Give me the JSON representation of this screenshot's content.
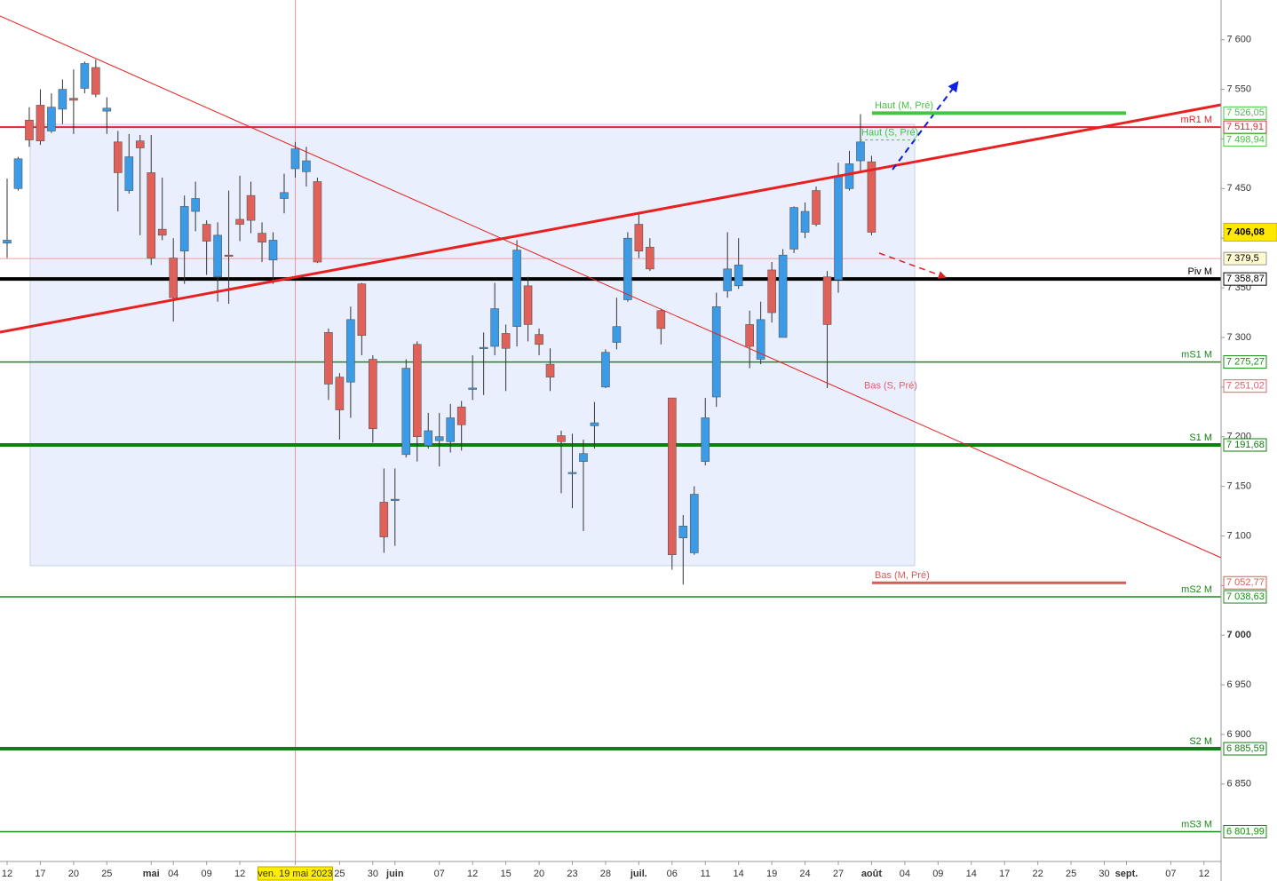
{
  "chart_data": {
    "type": "candlestick",
    "up_color": "#3c9be6",
    "down_color": "#e0605a",
    "categories": [
      "12",
      null,
      null,
      "17",
      null,
      null,
      "20",
      null,
      null,
      "25",
      null,
      null,
      null,
      "mai",
      null,
      "04",
      null,
      null,
      "09",
      null,
      null,
      "12",
      null,
      null,
      null,
      null,
      "ven. 19 mai 2023",
      null,
      null,
      null,
      "25",
      null,
      null,
      "30",
      null,
      "juin",
      null,
      null,
      null,
      "07",
      null,
      null,
      "12",
      null,
      null,
      "15",
      null,
      null,
      "20",
      null,
      null,
      "23",
      null,
      null,
      "28",
      null,
      null,
      "juil.",
      null,
      null,
      "06",
      null,
      null,
      "11",
      null,
      null,
      "14",
      null,
      null,
      "19",
      null,
      null,
      "24",
      null,
      null,
      "27",
      null,
      null,
      "août",
      null,
      null,
      "04",
      null,
      null,
      "09",
      null,
      null,
      "14",
      null,
      null,
      "17",
      null,
      null,
      "22",
      null,
      null,
      "25",
      null,
      null,
      "30",
      null,
      "sept.",
      null,
      null,
      null,
      "07",
      null,
      null,
      "12"
    ],
    "open": [
      7395,
      7450,
      7519,
      7534,
      7508,
      7530,
      7541,
      7551,
      7572,
      7528,
      7497,
      7448,
      7498,
      7466,
      7409,
      7380,
      7387,
      7427,
      7414,
      7361,
      7383,
      7419,
      7443,
      7405,
      7378,
      7440,
      7470,
      7467,
      7457,
      7305,
      7260,
      7255,
      7354,
      7278,
      7134,
      7136,
      7182,
      7293,
      7191,
      7196,
      7195,
      7230,
      7248,
      7289,
      7291,
      7304,
      7311,
      7352,
      7303,
      7273,
      7201,
      7163,
      7175,
      7211,
      7250,
      7295,
      7338,
      7414,
      7391,
      7327,
      7239,
      7098,
      7083,
      7175,
      7240,
      7347,
      7352,
      7313,
      7278,
      7368,
      7300,
      7389,
      7406,
      7448,
      7361,
      7358,
      7450,
      7478,
      7477,
      null,
      null,
      null,
      null,
      null,
      null,
      null,
      null,
      null,
      null,
      null,
      null,
      null,
      null,
      null,
      null,
      null,
      null,
      null,
      null,
      null,
      null,
      null,
      null,
      null,
      null,
      null,
      null,
      null,
      null
    ],
    "high": [
      7460,
      7482,
      7532,
      7550,
      7546,
      7560,
      7570,
      7578,
      7580,
      7542,
      7508,
      7505,
      7504,
      7504,
      7461,
      7400,
      7443,
      7457,
      7418,
      7416,
      7448,
      7463,
      7457,
      7416,
      7406,
      7465,
      7497,
      7492,
      7461,
      7309,
      7264,
      7331,
      7355,
      7282,
      7168,
      7168,
      7278,
      7296,
      7224,
      7224,
      7233,
      7236,
      7282,
      7305,
      7355,
      7313,
      7398,
      7361,
      7309,
      7289,
      7206,
      7203,
      7197,
      7235,
      7288,
      7340,
      7406,
      7425,
      7400,
      7329,
      7239,
      7121,
      7150,
      7239,
      7345,
      7406,
      7400,
      7327,
      7336,
      7376,
      7389,
      7432,
      7436,
      7452,
      7367,
      7476,
      7488,
      7525,
      7483,
      null,
      null,
      null,
      null,
      null,
      null,
      null,
      null,
      null,
      null,
      null,
      null,
      null,
      null,
      null,
      null,
      null,
      null,
      null,
      null,
      null,
      null,
      null,
      null,
      null,
      null,
      null,
      null,
      null,
      null
    ],
    "low": [
      7380,
      7448,
      7492,
      7494,
      7506,
      7515,
      7505,
      7546,
      7542,
      7505,
      7427,
      7445,
      7403,
      7373,
      7398,
      7316,
      7354,
      7407,
      7363,
      7336,
      7334,
      7397,
      7405,
      7376,
      7354,
      7425,
      7461,
      7452,
      7375,
      7237,
      7197,
      7219,
      7282,
      7194,
      7083,
      7090,
      7179,
      7175,
      7188,
      7170,
      7184,
      7186,
      7237,
      7242,
      7282,
      7246,
      7291,
      7296,
      7282,
      7246,
      7143,
      7128,
      7105,
      7188,
      7249,
      7288,
      7336,
      7380,
      7367,
      7293,
      7066,
      7051,
      7081,
      7171,
      7230,
      7340,
      7349,
      7269,
      7273,
      7315,
      7300,
      7385,
      7400,
      7412,
      7249,
      7345,
      7448,
      7468,
      7403,
      null,
      null,
      null,
      null,
      null,
      null,
      null,
      null,
      null,
      null,
      null,
      null,
      null,
      null,
      null,
      null,
      null,
      null,
      null,
      null,
      null,
      null,
      null,
      null,
      null,
      null,
      null,
      null,
      null,
      null
    ],
    "close": [
      7398,
      7480,
      7499,
      7498,
      7532,
      7550,
      7539,
      7576,
      7545,
      7531,
      7466,
      7482,
      7491,
      7380,
      7403,
      7340,
      7432,
      7440,
      7397,
      7403,
      7382,
      7414,
      7418,
      7396,
      7398,
      7446,
      7490,
      7478,
      7376,
      7253,
      7227,
      7318,
      7302,
      7208,
      7099,
      7137,
      7269,
      7200,
      7206,
      7200,
      7219,
      7212,
      7249,
      7290,
      7329,
      7289,
      7388,
      7313,
      7293,
      7260,
      7195,
      7164,
      7183,
      7214,
      7285,
      7311,
      7400,
      7387,
      7369,
      7309,
      7081,
      7110,
      7142,
      7219,
      7331,
      7369,
      7373,
      7291,
      7318,
      7325,
      7383,
      7431,
      7427,
      7414,
      7313,
      7463,
      7475,
      7497,
      7406,
      null,
      null,
      null,
      null,
      null,
      null,
      null,
      null,
      null,
      null,
      null,
      null,
      null,
      null,
      null,
      null,
      null,
      null,
      null,
      null,
      null,
      null,
      null,
      null,
      null,
      null,
      null,
      null,
      null,
      null
    ],
    "ylim": [
      6772,
      7640
    ],
    "yticks": [
      {
        "value": 6850,
        "label": "6 850"
      },
      {
        "value": 6900,
        "label": "6 900"
      },
      {
        "value": 6950,
        "label": "6 950"
      },
      {
        "value": 7000,
        "label": "7 000"
      },
      {
        "value": 7050,
        "label": "7 050"
      },
      {
        "value": 7100,
        "label": "7 100"
      },
      {
        "value": 7150,
        "label": "7 150"
      },
      {
        "value": 7200,
        "label": "7 200"
      },
      {
        "value": 7250,
        "label": "7 250"
      },
      {
        "value": 7300,
        "label": "7 300"
      },
      {
        "value": 7350,
        "label": "7 350"
      },
      {
        "value": 7400,
        "label": "7 400"
      },
      {
        "value": 7450,
        "label": "7 450"
      },
      {
        "value": 7500,
        "label": "7 500"
      },
      {
        "value": 7550,
        "label": "7 550"
      },
      {
        "value": 7600,
        "label": "7 600"
      }
    ],
    "levels": [
      {
        "name": "mR1 M",
        "value": 7511.91,
        "value_label": "7 511,91",
        "color": "#e02828",
        "linewidth": 2
      },
      {
        "name": "Piv M",
        "value": 7358.87,
        "value_label": "7 358,87",
        "color": "#000000",
        "linewidth": 4
      },
      {
        "name": "mS1 M",
        "value": 7275.27,
        "value_label": "7 275,27",
        "color": "#1a8a1a",
        "linewidth": 1.5
      },
      {
        "name": "S1 M",
        "value": 7191.68,
        "value_label": "7 191,68",
        "color": "#0f7f0f",
        "linewidth": 4
      },
      {
        "name": "mS2 M",
        "value": 7038.63,
        "value_label": "7 038,63",
        "color": "#1a8a1a",
        "linewidth": 1.5
      },
      {
        "name": "S2 M",
        "value": 6885.59,
        "value_label": "6 885,59",
        "color": "#0f7f0f",
        "linewidth": 4
      },
      {
        "name": "mS3 M",
        "value": 6801.99,
        "value_label": "6 801,99",
        "color": "#1a8a1a",
        "linewidth": 1.5
      }
    ],
    "markers": [
      {
        "name": "Haut (M, Pré)",
        "value": 7526.05,
        "value_label": "7 526,05",
        "color": "#44c444"
      },
      {
        "name": "Haut (S, Pré)",
        "value": 7498.94,
        "value_label": "7 498,94",
        "color": "#44c444"
      },
      {
        "name": "Bas (S, Pré)",
        "value": 7251.02,
        "value_label": "7 251,02",
        "color": "#e0606e"
      },
      {
        "name": "Bas (M, Pré)",
        "value": 7052.77,
        "value_label": "7 052,77",
        "color": "#d85a5a"
      }
    ],
    "last_price": {
      "value": 7406.08,
      "label": "7 406,08"
    },
    "crosshair": {
      "x": "ven. 19 mai 2023",
      "y": 7379.5,
      "y_label": "7 379,5",
      "color": "#f08080"
    }
  }
}
